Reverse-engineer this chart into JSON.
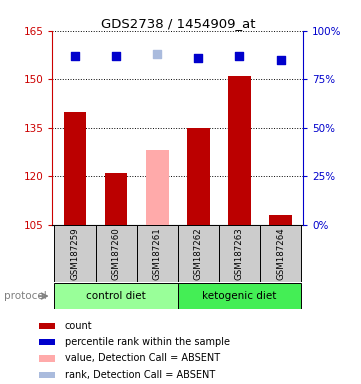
{
  "title": "GDS2738 / 1454909_at",
  "samples": [
    "GSM187259",
    "GSM187260",
    "GSM187261",
    "GSM187262",
    "GSM187263",
    "GSM187264"
  ],
  "bar_values": [
    140,
    121,
    null,
    135,
    151,
    108
  ],
  "absent_bar_values": [
    null,
    null,
    128,
    null,
    null,
    null
  ],
  "rank_values": [
    87,
    87,
    null,
    86,
    87,
    85
  ],
  "rank_absent_values": [
    null,
    null,
    88,
    null,
    null,
    null
  ],
  "ylim_left": [
    105,
    165
  ],
  "ylim_right": [
    0,
    100
  ],
  "yticks_left": [
    105,
    120,
    135,
    150,
    165
  ],
  "yticks_right": [
    0,
    25,
    50,
    75,
    100
  ],
  "groups": [
    {
      "label": "control diet",
      "indices": [
        0,
        1,
        2
      ],
      "color": "#99ff99"
    },
    {
      "label": "ketogenic diet",
      "indices": [
        3,
        4,
        5
      ],
      "color": "#44ee55"
    }
  ],
  "protocol_label": "protocol",
  "bar_width": 0.55,
  "count_bar_color": "#bb0000",
  "absent_bar_color": "#ffaaaa",
  "rank_marker_color": "#0000cc",
  "rank_absent_color": "#aabbdd",
  "legend_items": [
    {
      "color": "#bb0000",
      "label": "count"
    },
    {
      "color": "#0000cc",
      "label": "percentile rank within the sample"
    },
    {
      "color": "#ffaaaa",
      "label": "value, Detection Call = ABSENT"
    },
    {
      "color": "#aabbdd",
      "label": "rank, Detection Call = ABSENT"
    }
  ],
  "sample_box_color": "#cccccc",
  "left_spine_color": "#cc0000",
  "right_spine_color": "#0000cc",
  "left_tick_color": "#cc0000",
  "right_tick_color": "#0000cc"
}
